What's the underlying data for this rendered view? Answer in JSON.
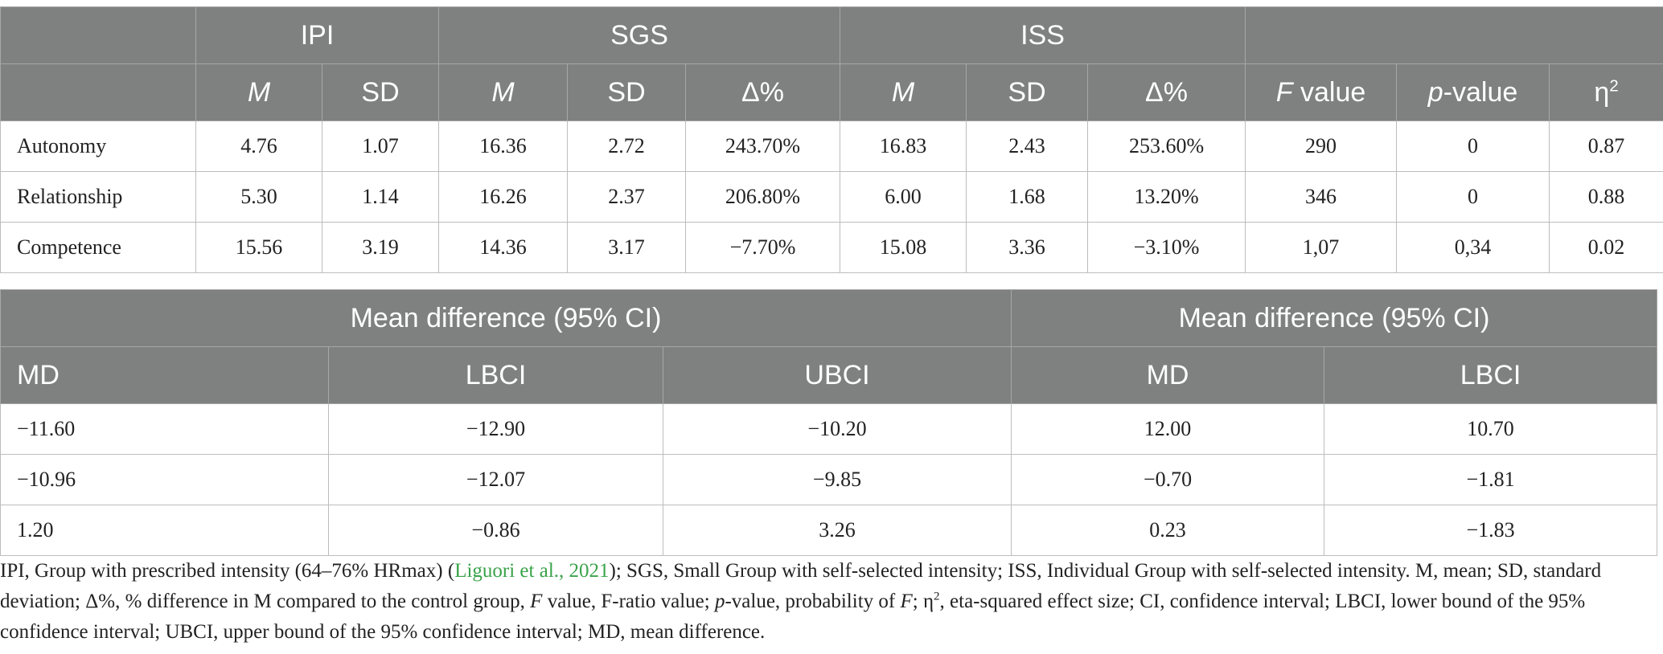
{
  "table1": {
    "groups": [
      "IPI",
      "SGS",
      "ISS"
    ],
    "subheaders": {
      "m": "M",
      "sd": "SD",
      "delta": "Δ%",
      "f_it": "F",
      "f_rest": " value",
      "p_it": "p",
      "p_rest": "-value",
      "eta": "η",
      "eta_sup": "2"
    },
    "rows": [
      {
        "label": "Autonomy",
        "ipi_m": "4.76",
        "ipi_sd": "1.07",
        "sgs_m": "16.36",
        "sgs_sd": "2.72",
        "sgs_d": "243.70%",
        "iss_m": "16.83",
        "iss_sd": "2.43",
        "iss_d": "253.60%",
        "f": "290",
        "p": "0",
        "eta": "0.87"
      },
      {
        "label": "Relationship",
        "ipi_m": "5.30",
        "ipi_sd": "1.14",
        "sgs_m": "16.26",
        "sgs_sd": "2.37",
        "sgs_d": "206.80%",
        "iss_m": "6.00",
        "iss_sd": "1.68",
        "iss_d": "13.20%",
        "f": "346",
        "p": "0",
        "eta": "0.88"
      },
      {
        "label": "Competence",
        "ipi_m": "15.56",
        "ipi_sd": "3.19",
        "sgs_m": "14.36",
        "sgs_sd": "3.17",
        "sgs_d": "−7.70%",
        "iss_m": "15.08",
        "iss_sd": "3.36",
        "iss_d": "−3.10%",
        "f": "1,07",
        "p": "0,34",
        "eta": "0.02"
      }
    ]
  },
  "table2": {
    "group_header_1": "Mean difference (95% CI)",
    "group_header_2": "Mean difference (95% CI)",
    "subheaders": [
      "MD",
      "LBCI",
      "UBCI",
      "MD",
      "LBCI"
    ],
    "rows": [
      [
        "−11.60",
        "−12.90",
        "−10.20",
        "12.00",
        "10.70"
      ],
      [
        "−10.96",
        "−12.07",
        "−9.85",
        "−0.70",
        "−1.81"
      ],
      [
        "1.20",
        "−0.86",
        "3.26",
        "0.23",
        "−1.83"
      ]
    ]
  },
  "footnote": {
    "p1": "IPI, Group with prescribed intensity (64–76% HRmax) (",
    "link": "Liguori et al., 2021",
    "p2": "); SGS, Small Group with self-selected intensity; ISS, Individual Group with self-selected intensity. M, mean; SD, standard deviation; Δ%, % difference in M compared to the control group, ",
    "f_it": "F",
    "p3": " value, F-ratio value; ",
    "p_it": "p",
    "p4": "-value, probability of ",
    "f_it2": "F",
    "p5": "; η",
    "sup": "2",
    "p6": ", eta-squared effect size; CI, confidence interval; LBCI, lower bound of the 95% confidence interval; UBCI, upper bound of the 95% confidence interval; MD, mean difference."
  }
}
